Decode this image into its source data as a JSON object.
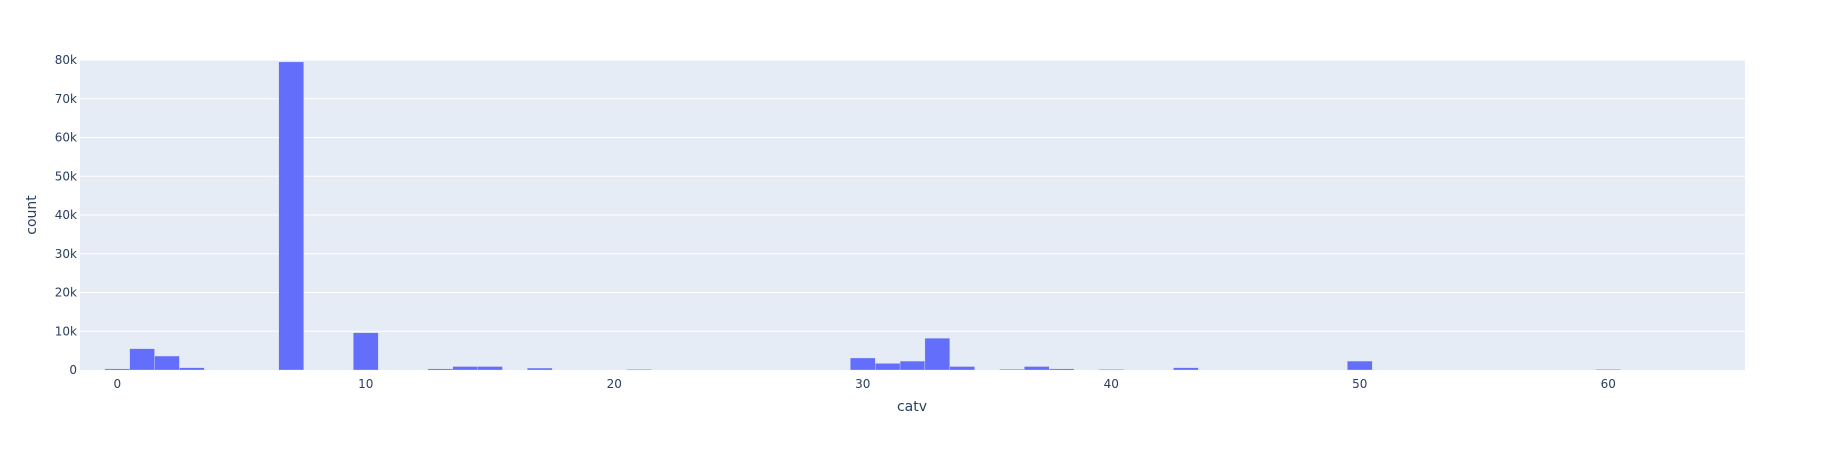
{
  "chart_data": {
    "type": "bar",
    "xlabel": "catv",
    "ylabel": "count",
    "xlim": [
      -1.5,
      65.5
    ],
    "ylim": [
      0,
      80000
    ],
    "x_ticks": [
      0,
      10,
      20,
      30,
      40,
      50,
      60
    ],
    "y_ticks": [
      0,
      10000,
      20000,
      30000,
      40000,
      50000,
      60000,
      70000,
      80000
    ],
    "y_tick_labels": [
      "0",
      "10k",
      "20k",
      "30k",
      "40k",
      "50k",
      "60k",
      "70k",
      "80k"
    ],
    "bin_width": 1,
    "series": [
      {
        "x": [
          -0.5,
          0.5,
          1.5,
          2.5,
          6.5,
          9.5,
          12.5,
          13.5,
          14.5,
          16.5,
          20.5,
          29.5,
          30.5,
          31.5,
          32.5,
          33.5,
          35.5,
          36.5,
          37.5,
          39.5,
          42.5,
          49.5,
          59.5
        ],
        "values": [
          300,
          5500,
          3600,
          600,
          79500,
          9600,
          300,
          900,
          900,
          500,
          150,
          3100,
          1700,
          2300,
          8200,
          900,
          200,
          900,
          300,
          150,
          600,
          2300,
          150
        ]
      }
    ],
    "colors": {
      "bar": "#636efa",
      "plot_bg": "#e5ecf6",
      "grid": "#ffffff",
      "text": "#2a3f5f"
    },
    "grid": true,
    "legend": "none"
  }
}
